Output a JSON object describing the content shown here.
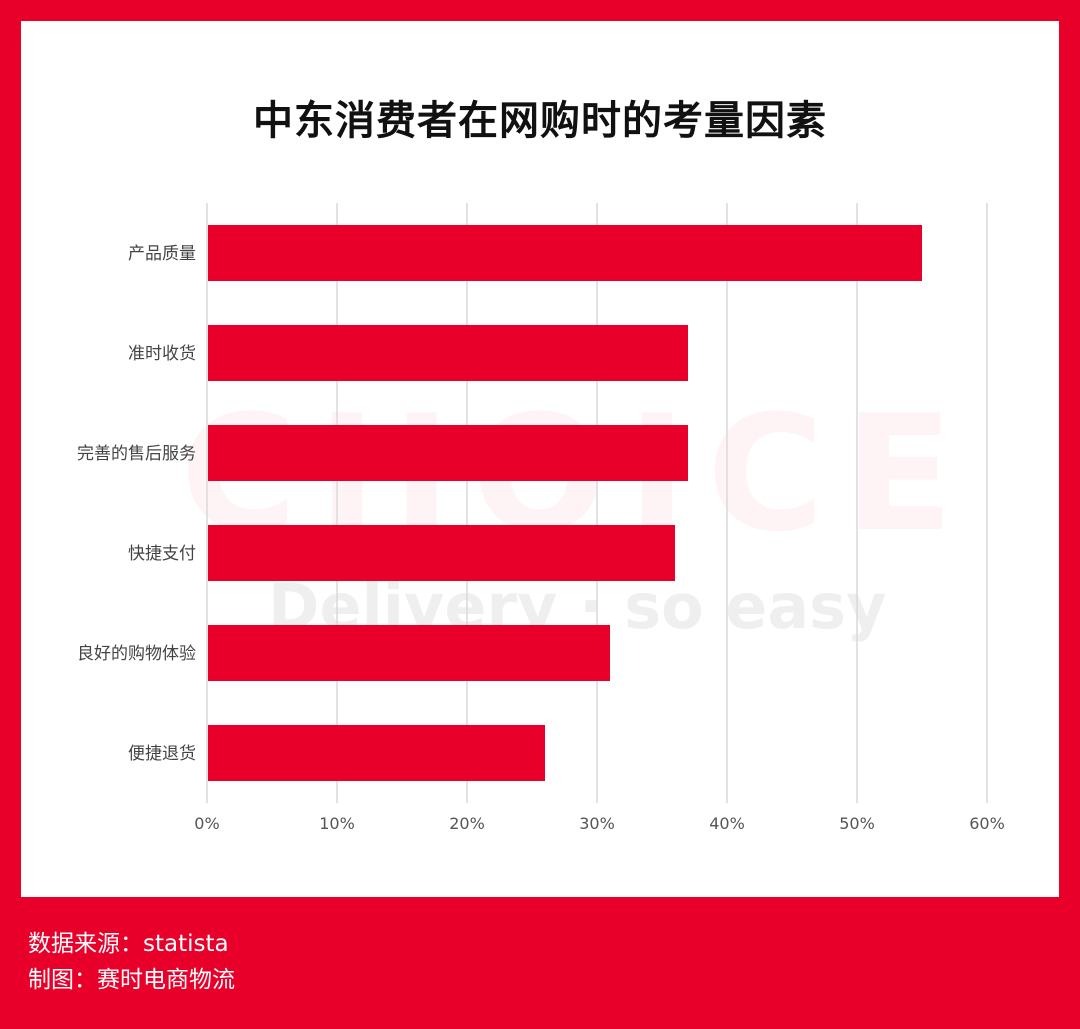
{
  "title": "中东消费者在网购时的考量因素",
  "watermark": {
    "big": "CHOICE",
    "small": "Delivery · so easy"
  },
  "footer": {
    "source": "数据来源：statista",
    "maker": "制图：赛时电商物流"
  },
  "colors": {
    "frame": "#e8002b",
    "bar": "#e8002b",
    "grid": "#d9d9d9"
  },
  "chart_data": {
    "type": "bar",
    "orientation": "horizontal",
    "title": "中东消费者在网购时的考量因素",
    "categories": [
      "产品质量",
      "准时收货",
      "完善的售后服务",
      "快捷支付",
      "良好的购物体验",
      "便捷退货"
    ],
    "values": [
      55,
      37,
      37,
      36,
      31,
      26
    ],
    "xlim": [
      0,
      60
    ],
    "xticks": [
      0,
      10,
      20,
      30,
      40,
      50,
      60
    ],
    "xtick_labels": [
      "0%",
      "10%",
      "20%",
      "30%",
      "40%",
      "50%",
      "60%"
    ],
    "grid": true,
    "legend": "none"
  }
}
